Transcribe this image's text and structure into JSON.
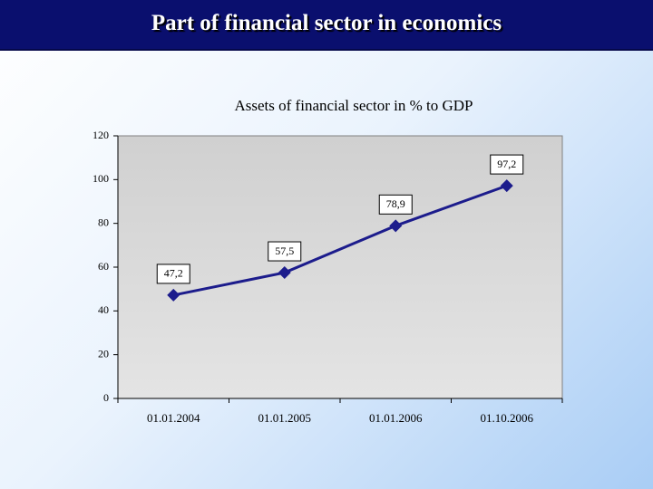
{
  "header": {
    "title": "Part of financial sector in economics"
  },
  "chart_data": {
    "type": "line",
    "title": "Assets of financial sector in % to GDP",
    "categories": [
      "01.01.2004",
      "01.01.2005",
      "01.01.2006",
      "01.10.2006"
    ],
    "values": [
      47.2,
      57.5,
      78.9,
      97.2
    ],
    "value_labels": [
      "47,2",
      "57,5",
      "78,9",
      "97,2"
    ],
    "color": "#1c1c8c",
    "ylim": [
      0,
      120
    ],
    "yticks": [
      0,
      20,
      40,
      60,
      80,
      100,
      120
    ],
    "grid": false
  }
}
